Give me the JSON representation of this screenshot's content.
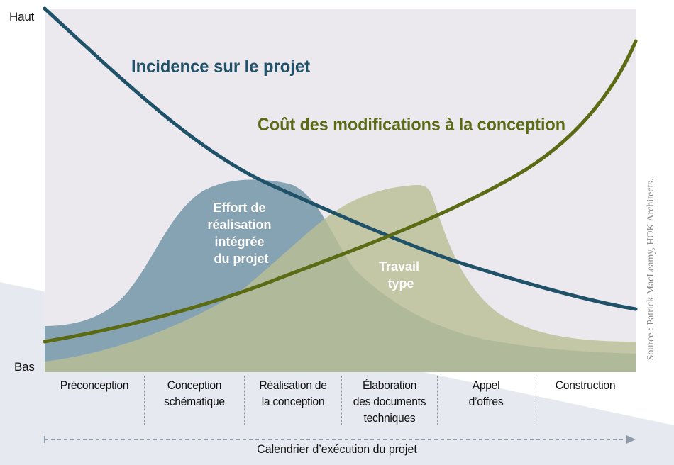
{
  "diagram": {
    "y_axis": {
      "high_label": "Haut",
      "low_label": "Bas"
    },
    "curves": [
      {
        "id": "impact",
        "label": "Incidence sur le projet",
        "color": "#1f5168"
      },
      {
        "id": "cost",
        "label": "Coût des modifications à la conception",
        "color": "#5b6b14"
      }
    ],
    "areas": [
      {
        "id": "integrated",
        "label": "Effort de réalisation intégrée du projet",
        "color": "#86a3b3"
      },
      {
        "id": "typical",
        "label": "Travail type",
        "color": "#b9c096"
      }
    ],
    "labels": {
      "impact": "Incidence sur le projet",
      "cost": "Coût des modifications à la conception",
      "integrated_lines": [
        "Effort de",
        "réalisation",
        "intégrée",
        "du projet"
      ],
      "typical_lines": [
        "Travail",
        "type"
      ]
    },
    "phases": [
      "Préconception",
      "Conception\nschématique",
      "Réalisation de\nla conception",
      "Élaboration\ndes documents\ntechniques",
      "Appel\nd’offres",
      "Construction"
    ],
    "x_axis_label": "Calendrier d’exécution du projet",
    "source": "Source : Patrick MacLeamy, HOK Architects.",
    "colors": {
      "plot_background": "#ebe9ee",
      "overlap": "#9aaa8c",
      "wedge": "#e6e9ef",
      "arrow": "#8d9ca8"
    }
  }
}
